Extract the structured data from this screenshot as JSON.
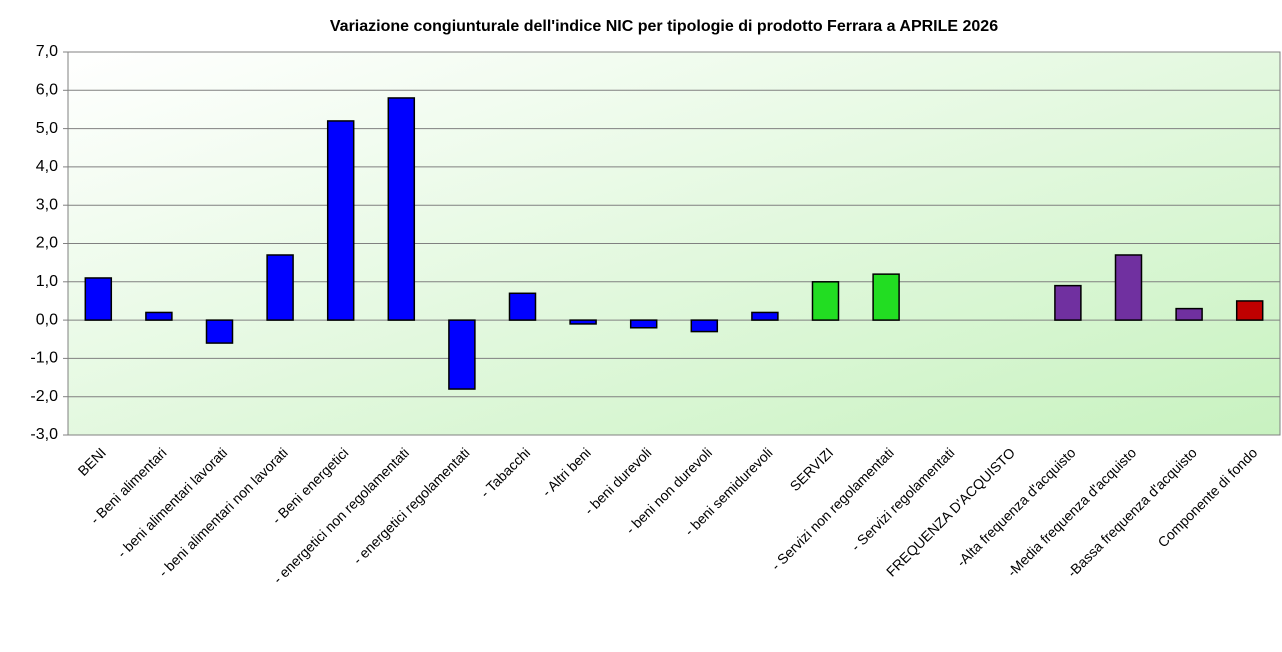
{
  "chart_data": {
    "type": "bar",
    "title": "Variazione congiunturale dell'indice NIC per tipologie di prodotto Ferrara a APRILE 2026",
    "categories": [
      "BENI",
      "- Beni alimentari",
      "- beni alimentari lavorati",
      "- beni alimentari non lavorati",
      "- Beni energetici",
      "- energetici non regolamentati",
      "- energetici regolamentati",
      "- Tabacchi",
      "- Altri beni",
      "- beni durevoli",
      "- beni non durevoli",
      "- beni semidurevoli",
      "SERVIZI",
      "- Servizi non regolamentati",
      "- Servizi regolamentati",
      "FREQUENZA D'ACQUISTO",
      "-Alta frequenza d'acquisto",
      "-Media frequenza d'acquisto",
      "-Bassa frequenza d'acquisto",
      "Componente di fondo"
    ],
    "values": [
      1.1,
      0.2,
      -0.6,
      1.7,
      5.2,
      5.8,
      -1.8,
      0.7,
      -0.1,
      -0.2,
      -0.3,
      0.2,
      1.0,
      1.2,
      null,
      null,
      0.9,
      1.7,
      0.3,
      0.5
    ],
    "colors": [
      "#0000ff",
      "#0000ff",
      "#0000ff",
      "#0000ff",
      "#0000ff",
      "#0000ff",
      "#0000ff",
      "#0000ff",
      "#0000ff",
      "#0000ff",
      "#0000ff",
      "#0000ff",
      "#22dd22",
      "#22dd22",
      "#22dd22",
      "#7030a0",
      "#7030a0",
      "#7030a0",
      "#7030a0",
      "#c00000"
    ],
    "ylim": [
      -3,
      7
    ],
    "yticks": [
      {
        "value": -3,
        "label": "-3,0"
      },
      {
        "value": -2,
        "label": "-2,0"
      },
      {
        "value": -1,
        "label": "-1,0"
      },
      {
        "value": 0,
        "label": "0,0"
      },
      {
        "value": 1,
        "label": "1,0"
      },
      {
        "value": 2,
        "label": "2,0"
      },
      {
        "value": 3,
        "label": "3,0"
      },
      {
        "value": 4,
        "label": "4,0"
      },
      {
        "value": 5,
        "label": "5,0"
      },
      {
        "value": 6,
        "label": "6,0"
      },
      {
        "value": 7,
        "label": "7,0"
      }
    ],
    "grid": true
  }
}
